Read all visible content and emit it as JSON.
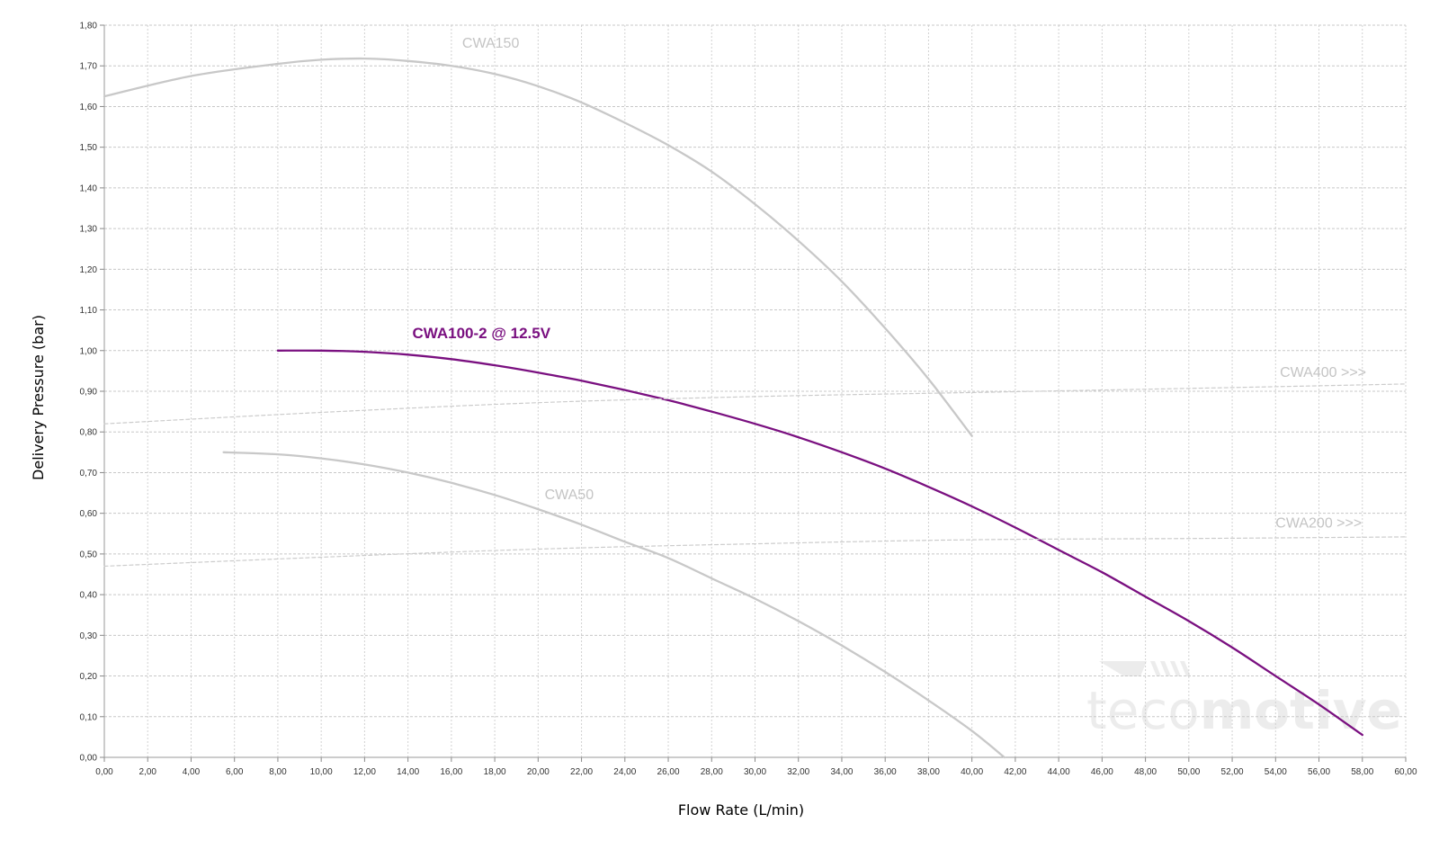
{
  "chart_data": {
    "type": "line",
    "xlabel": "Flow Rate (L/min)",
    "ylabel": "Delivery Pressure (bar)",
    "xlim": [
      0,
      60
    ],
    "ylim": [
      0,
      1.8
    ],
    "x_ticks": [
      "0,00",
      "2,00",
      "4,00",
      "6,00",
      "8,00",
      "10,00",
      "12,00",
      "14,00",
      "16,00",
      "18,00",
      "20,00",
      "22,00",
      "24,00",
      "26,00",
      "28,00",
      "30,00",
      "32,00",
      "34,00",
      "36,00",
      "38,00",
      "40,00",
      "42,00",
      "44,00",
      "46,00",
      "48,00",
      "50,00",
      "52,00",
      "54,00",
      "56,00",
      "58,00",
      "60,00"
    ],
    "y_ticks": [
      "0,00",
      "0,10",
      "0,20",
      "0,30",
      "0,40",
      "0,50",
      "0,60",
      "0,70",
      "0,80",
      "0,90",
      "1,00",
      "1,10",
      "1,20",
      "1,30",
      "1,40",
      "1,50",
      "1,60",
      "1,70",
      "1,80"
    ],
    "grid": true,
    "series": [
      {
        "name": "CWA150",
        "label": "CWA150",
        "color": "#c8c8c8",
        "style": "solid",
        "label_at": [
          16.5,
          1.745
        ],
        "x": [
          0,
          4,
          8,
          10,
          12,
          14,
          16,
          18,
          20,
          22,
          24,
          26,
          28,
          30,
          32,
          34,
          36,
          38,
          40
        ],
        "y": [
          1.625,
          1.675,
          1.705,
          1.715,
          1.718,
          1.712,
          1.7,
          1.68,
          1.65,
          1.61,
          1.56,
          1.505,
          1.44,
          1.36,
          1.27,
          1.17,
          1.055,
          0.93,
          0.79
        ]
      },
      {
        "name": "CWA100-2 @ 12.5V",
        "label": "CWA100-2 @ 12.5V",
        "color": "#7a1080",
        "style": "solid",
        "label_at": [
          14.2,
          1.03
        ],
        "x": [
          8,
          10,
          12,
          14,
          16,
          18,
          20,
          22,
          24,
          26,
          28,
          30,
          32,
          34,
          36,
          38,
          40,
          42,
          44,
          46,
          48,
          50,
          52,
          54,
          56,
          58
        ],
        "y": [
          1.0,
          1.0,
          0.997,
          0.99,
          0.979,
          0.964,
          0.946,
          0.926,
          0.903,
          0.878,
          0.85,
          0.82,
          0.787,
          0.75,
          0.71,
          0.665,
          0.617,
          0.565,
          0.51,
          0.455,
          0.395,
          0.335,
          0.27,
          0.2,
          0.13,
          0.055
        ]
      },
      {
        "name": "CWA50",
        "label": "CWA50",
        "color": "#c8c8c8",
        "style": "solid",
        "label_at": [
          20.3,
          0.635
        ],
        "x": [
          5.5,
          8,
          10,
          12,
          14,
          16,
          18,
          20,
          22,
          24,
          26,
          28,
          30,
          32,
          34,
          36,
          38,
          40,
          41.5
        ],
        "y": [
          0.75,
          0.745,
          0.735,
          0.72,
          0.7,
          0.675,
          0.645,
          0.61,
          0.572,
          0.53,
          0.49,
          0.44,
          0.39,
          0.335,
          0.275,
          0.21,
          0.14,
          0.065,
          0.0
        ]
      },
      {
        "name": "CWA400 >>>",
        "label": "CWA400 >>>",
        "color": "#cccccc",
        "style": "dashed",
        "label_at": [
          54.2,
          0.935
        ],
        "x": [
          0,
          10,
          20,
          30,
          40,
          50,
          60
        ],
        "y": [
          0.82,
          0.848,
          0.872,
          0.887,
          0.897,
          0.907,
          0.918
        ]
      },
      {
        "name": "CWA200 >>>",
        "label": "CWA200 >>>",
        "color": "#cccccc",
        "style": "dashed",
        "label_at": [
          54.0,
          0.565
        ],
        "x": [
          0,
          10,
          20,
          30,
          40,
          50,
          60
        ],
        "y": [
          0.47,
          0.492,
          0.512,
          0.525,
          0.535,
          0.538,
          0.542
        ]
      }
    ]
  },
  "watermark": {
    "text_a": "teco",
    "text_b": "motive",
    "color": "#ececec"
  }
}
